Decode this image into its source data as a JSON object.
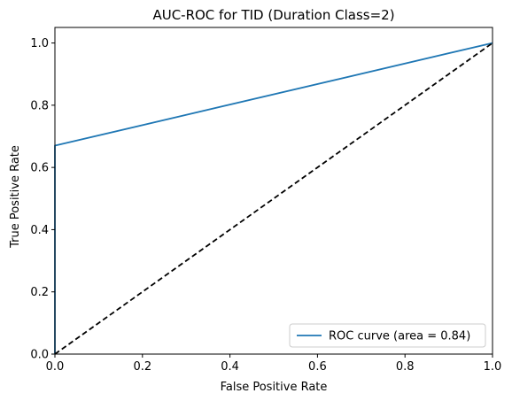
{
  "chart_data": {
    "type": "line",
    "title": "AUC-ROC for TID (Duration Class=2)",
    "xlabel": "False Positive Rate",
    "ylabel": "True Positive Rate",
    "xlim": [
      0.0,
      1.0
    ],
    "ylim": [
      0.0,
      1.05
    ],
    "x_ticks": [
      0.0,
      0.2,
      0.4,
      0.6,
      0.8,
      1.0
    ],
    "x_tick_labels": [
      "0.0",
      "0.2",
      "0.4",
      "0.6",
      "0.8",
      "1.0"
    ],
    "y_ticks": [
      0.0,
      0.2,
      0.4,
      0.6,
      0.8,
      1.0
    ],
    "y_tick_labels": [
      "0.0",
      "0.2",
      "0.4",
      "0.6",
      "0.8",
      "1.0"
    ],
    "grid": false,
    "legend_position": "lower-right",
    "series": [
      {
        "name": "ROC curve (area = 0.84)",
        "color": "#1f77b4",
        "style": "solid",
        "x": [
          0.0,
          0.0,
          1.0
        ],
        "y": [
          0.0,
          0.67,
          1.0
        ]
      },
      {
        "color": "#000000",
        "style": "dashed",
        "x": [
          0.0,
          1.0
        ],
        "y": [
          0.0,
          1.0
        ]
      }
    ]
  }
}
